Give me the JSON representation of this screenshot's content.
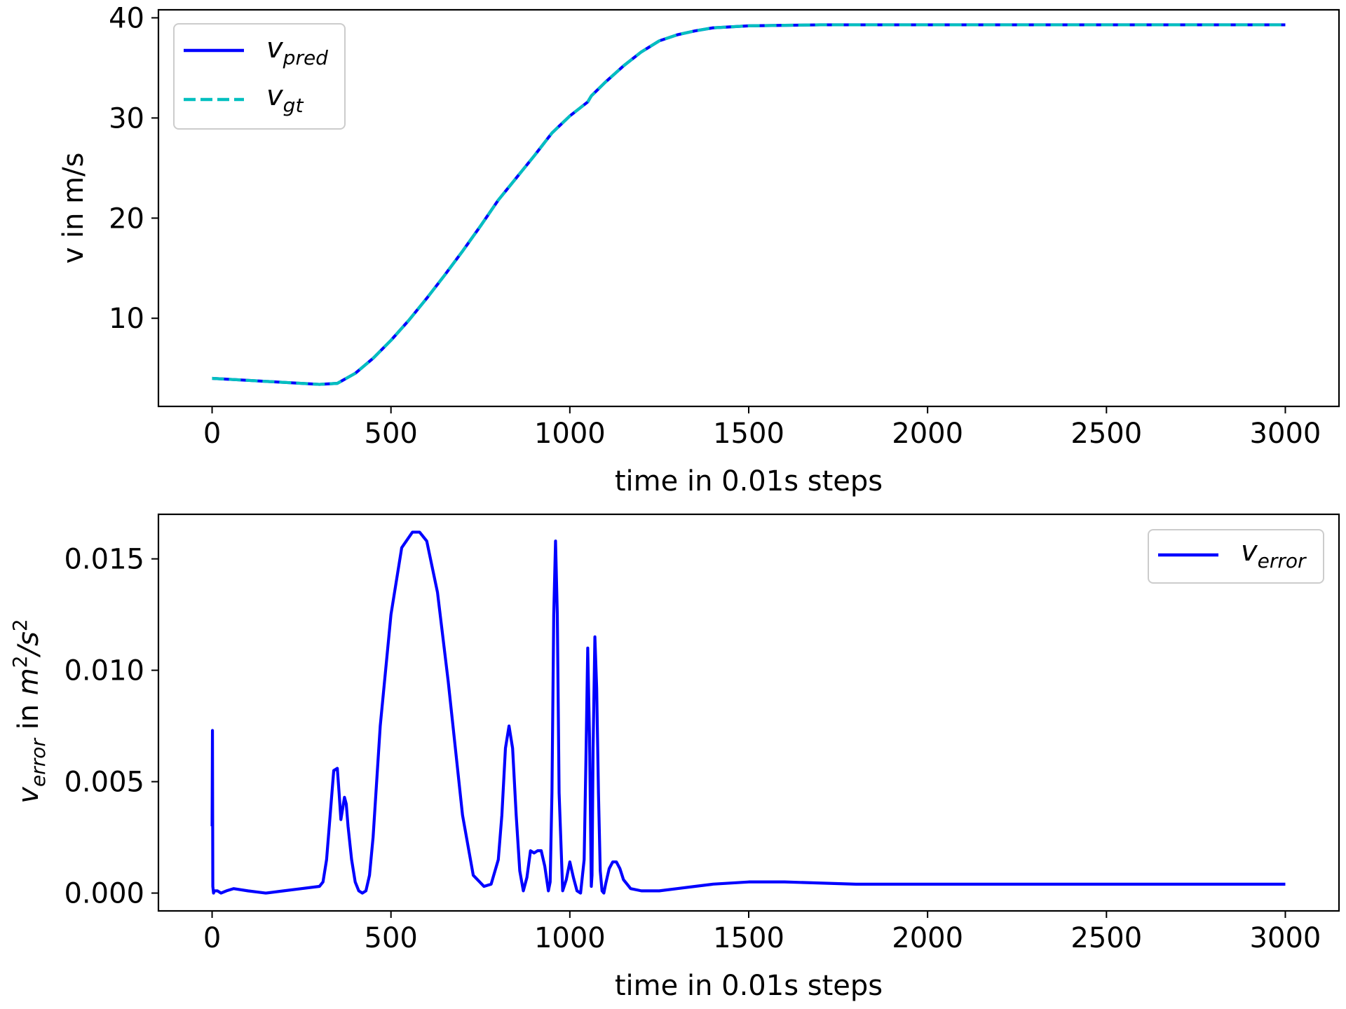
{
  "chart_data": [
    {
      "type": "line",
      "xlabel": "time in 0.01s steps",
      "ylabel": "v in m/s",
      "xlim": [
        -150,
        3150
      ],
      "ylim": [
        1.2,
        40.8
      ],
      "xticks": [
        0,
        500,
        1000,
        1500,
        2000,
        2500,
        3000
      ],
      "yticks": [
        10,
        20,
        30,
        40
      ],
      "ytick_labels": [
        "10",
        "20",
        "30",
        "40"
      ],
      "legend_position": "top-left",
      "series": [
        {
          "name": "v_pred",
          "label_main": "v",
          "label_sub": "pred",
          "color": "#0000ff",
          "style": "solid",
          "x": [
            0,
            100,
            200,
            300,
            350,
            400,
            450,
            500,
            550,
            600,
            650,
            700,
            750,
            800,
            850,
            900,
            950,
            1000,
            1050,
            1060,
            1100,
            1150,
            1200,
            1250,
            1300,
            1350,
            1400,
            1500,
            1600,
            1700,
            2000,
            2500,
            3000
          ],
          "y": [
            4.0,
            3.8,
            3.6,
            3.4,
            3.5,
            4.5,
            6.0,
            7.8,
            9.8,
            12.0,
            14.3,
            16.7,
            19.2,
            21.8,
            24.0,
            26.2,
            28.5,
            30.2,
            31.6,
            32.2,
            33.6,
            35.2,
            36.6,
            37.7,
            38.3,
            38.7,
            39.0,
            39.2,
            39.25,
            39.3,
            39.3,
            39.3,
            39.3
          ]
        },
        {
          "name": "v_gt",
          "label_main": "v",
          "label_sub": "gt",
          "color": "#00bfbf",
          "style": "dashed",
          "x": [
            0,
            100,
            200,
            300,
            350,
            400,
            450,
            500,
            550,
            600,
            650,
            700,
            750,
            800,
            850,
            900,
            950,
            1000,
            1050,
            1060,
            1100,
            1150,
            1200,
            1250,
            1300,
            1350,
            1400,
            1500,
            1600,
            1700,
            2000,
            2500,
            3000
          ],
          "y": [
            4.0,
            3.8,
            3.6,
            3.4,
            3.5,
            4.5,
            6.0,
            7.8,
            9.8,
            12.0,
            14.3,
            16.7,
            19.2,
            21.8,
            24.0,
            26.2,
            28.5,
            30.2,
            31.6,
            32.2,
            33.6,
            35.2,
            36.6,
            37.7,
            38.3,
            38.7,
            39.0,
            39.2,
            39.25,
            39.3,
            39.3,
            39.3,
            39.3
          ]
        }
      ]
    },
    {
      "type": "line",
      "xlabel": "time in 0.01s steps",
      "ylabel_main": "v",
      "ylabel_sub": "error",
      "ylabel_rest": " in ",
      "ylabel_unit_m": "m",
      "ylabel_unit_sup1": "2",
      "ylabel_unit_slash": "/",
      "ylabel_unit_s": "s",
      "ylabel_unit_sup2": "2",
      "xlim": [
        -150,
        3150
      ],
      "ylim": [
        -0.0008,
        0.017
      ],
      "xticks": [
        0,
        500,
        1000,
        1500,
        2000,
        2500,
        3000
      ],
      "yticks": [
        0.0,
        0.005,
        0.01,
        0.015
      ],
      "ytick_labels": [
        "0.000",
        "0.005",
        "0.010",
        "0.015"
      ],
      "legend_position": "top-right",
      "series": [
        {
          "name": "v_error",
          "label_main": "v",
          "label_sub": "error",
          "color": "#0000ff",
          "style": "solid",
          "x": [
            0,
            1,
            2,
            4,
            6,
            15,
            25,
            40,
            60,
            100,
            150,
            200,
            250,
            300,
            310,
            320,
            330,
            340,
            350,
            355,
            360,
            365,
            370,
            375,
            380,
            390,
            400,
            410,
            420,
            430,
            440,
            450,
            470,
            500,
            530,
            560,
            580,
            600,
            630,
            660,
            700,
            730,
            760,
            780,
            800,
            810,
            820,
            830,
            840,
            850,
            860,
            870,
            880,
            890,
            900,
            910,
            920,
            930,
            940,
            945,
            950,
            955,
            960,
            965,
            970,
            980,
            990,
            1000,
            1010,
            1020,
            1030,
            1040,
            1045,
            1050,
            1055,
            1060,
            1062,
            1065,
            1070,
            1075,
            1080,
            1085,
            1090,
            1095,
            1100,
            1110,
            1120,
            1130,
            1140,
            1150,
            1170,
            1200,
            1250,
            1300,
            1350,
            1400,
            1500,
            1600,
            1800,
            2000,
            2500,
            3000
          ],
          "y": [
            0.003,
            0.0073,
            0.0003,
            0.0,
            0.0001,
            0.0001,
            0.0,
            0.0001,
            0.0002,
            0.0001,
            0.0,
            0.0001,
            0.0002,
            0.0003,
            0.0005,
            0.0015,
            0.0035,
            0.0055,
            0.0056,
            0.0045,
            0.0033,
            0.0038,
            0.0043,
            0.004,
            0.003,
            0.0015,
            0.0005,
            0.0001,
            0.0,
            0.0001,
            0.0008,
            0.0025,
            0.0075,
            0.0125,
            0.0155,
            0.0162,
            0.0162,
            0.0158,
            0.0135,
            0.0095,
            0.0035,
            0.0008,
            0.0003,
            0.0004,
            0.0015,
            0.0035,
            0.0065,
            0.0075,
            0.0065,
            0.0035,
            0.001,
            0.0001,
            0.0007,
            0.0019,
            0.0018,
            0.0019,
            0.0019,
            0.0012,
            0.0001,
            0.0005,
            0.0045,
            0.0125,
            0.0158,
            0.0125,
            0.0045,
            0.0001,
            0.0006,
            0.0014,
            0.0007,
            0.0001,
            0.0,
            0.0015,
            0.006,
            0.011,
            0.007,
            0.0003,
            0.0008,
            0.0065,
            0.0115,
            0.0092,
            0.0045,
            0.001,
            0.0001,
            0.0,
            0.0004,
            0.0011,
            0.0014,
            0.0014,
            0.0011,
            0.0006,
            0.0002,
            0.0001,
            0.0001,
            0.0002,
            0.0003,
            0.0004,
            0.0005,
            0.0005,
            0.0004,
            0.0004,
            0.0004,
            0.0004
          ]
        }
      ]
    }
  ]
}
